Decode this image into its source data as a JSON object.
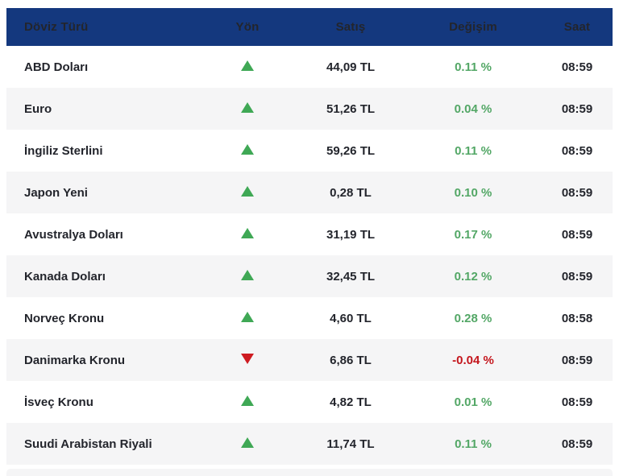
{
  "table": {
    "columns": [
      {
        "key": "currency",
        "label": "Döviz Türü"
      },
      {
        "key": "direction",
        "label": "Yön"
      },
      {
        "key": "satis",
        "label": "Satış"
      },
      {
        "key": "degisim",
        "label": "Değişim"
      },
      {
        "key": "saat",
        "label": "Saat"
      }
    ],
    "rows": [
      {
        "currency": "ABD Doları",
        "trend": "up",
        "satis": "44,09 TL",
        "degisim": "0.11 %",
        "saat": "08:59"
      },
      {
        "currency": "Euro",
        "trend": "up",
        "satis": "51,26 TL",
        "degisim": "0.04 %",
        "saat": "08:59"
      },
      {
        "currency": "İngiliz Sterlini",
        "trend": "up",
        "satis": "59,26 TL",
        "degisim": "0.11 %",
        "saat": "08:59"
      },
      {
        "currency": "Japon Yeni",
        "trend": "up",
        "satis": "0,28 TL",
        "degisim": "0.10 %",
        "saat": "08:59"
      },
      {
        "currency": "Avustralya Doları",
        "trend": "up",
        "satis": "31,19 TL",
        "degisim": "0.17 %",
        "saat": "08:59"
      },
      {
        "currency": "Kanada Doları",
        "trend": "up",
        "satis": "32,45 TL",
        "degisim": "0.12 %",
        "saat": "08:59"
      },
      {
        "currency": "Norveç Kronu",
        "trend": "up",
        "satis": "4,60 TL",
        "degisim": "0.28 %",
        "saat": "08:58"
      },
      {
        "currency": "Danimarka Kronu",
        "trend": "down",
        "satis": "6,86 TL",
        "degisim": "-0.04 %",
        "saat": "08:59"
      },
      {
        "currency": "İsveç Kronu",
        "trend": "up",
        "satis": "4,82 TL",
        "degisim": "0.01 %",
        "saat": "08:59"
      },
      {
        "currency": "Suudi Arabistan Riyali",
        "trend": "up",
        "satis": "11,74 TL",
        "degisim": "0.11 %",
        "saat": "08:59"
      }
    ]
  },
  "icons": {
    "up": "up-triangle-icon",
    "down": "down-triangle-icon"
  },
  "colors": {
    "header_bg": "#14387E",
    "header_text": "#FFFFFF",
    "row_alt_bg": "#F5F5F6",
    "text": "#23252C",
    "trend_up_icon": "#3FA855",
    "trend_up_text": "#53A766",
    "trend_down_icon": "#CE1B21",
    "trend_down_text": "#C4161D"
  }
}
